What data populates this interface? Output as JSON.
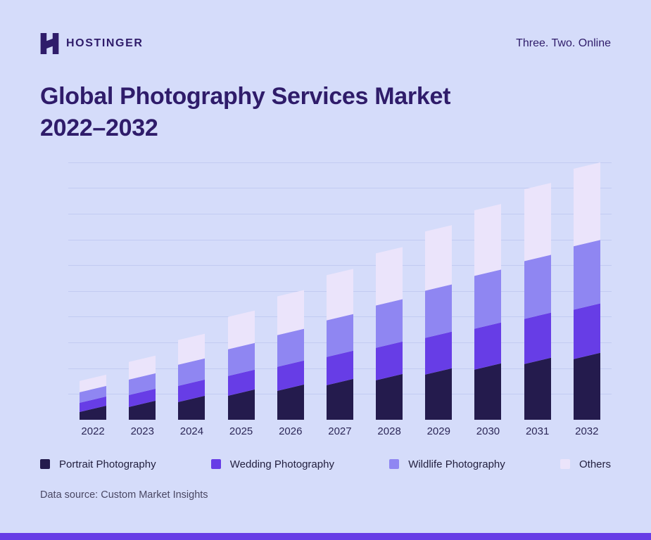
{
  "page": {
    "background": "#d5dcfa",
    "accent_bar_color": "#673de6"
  },
  "header": {
    "brand": "HOSTINGER",
    "tagline": "Three. Two. Online"
  },
  "title": {
    "line1": "Global Photography Services Market",
    "line2": "2022–2032"
  },
  "chart_data": {
    "type": "bar",
    "stacked": true,
    "title": "Global Photography Services Market 2022–2032",
    "categories": [
      "2022",
      "2023",
      "2024",
      "2025",
      "2026",
      "2027",
      "2028",
      "2029",
      "2030",
      "2031",
      "2032"
    ],
    "series": [
      {
        "name": "Portrait Photography",
        "color": "#241b4d",
        "values": [
          20,
          27,
          34,
          43,
          50,
          58,
          65,
          73,
          80,
          88,
          95
        ]
      },
      {
        "name": "Wedding Photography",
        "color": "#673de6",
        "values": [
          13,
          17,
          23,
          28,
          34,
          40,
          46,
          52,
          58,
          64,
          70
        ]
      },
      {
        "name": "Wildlife Photography",
        "color": "#8f86f2",
        "values": [
          15,
          22,
          30,
          38,
          45,
          52,
          60,
          67,
          75,
          82,
          90
        ]
      },
      {
        "name": "Others",
        "color": "#ebe4fb",
        "values": [
          16,
          25,
          35,
          46,
          55,
          64,
          74,
          84,
          93,
          102,
          110
        ]
      }
    ],
    "xlabel": "",
    "ylabel": "",
    "y_axis_labels_visible": false,
    "units": "relative market size (no axis values shown in image)",
    "grid": true,
    "gridline_count": 10,
    "legend_position": "bottom"
  },
  "footer": {
    "source": "Data source: Custom Market Insights"
  },
  "colors": {
    "title_text": "#2f1c6a",
    "grid": "#c2cbf2",
    "x_label_text": "#2c2757",
    "legend_text": "#23203f",
    "footer_text": "#4a4763"
  }
}
